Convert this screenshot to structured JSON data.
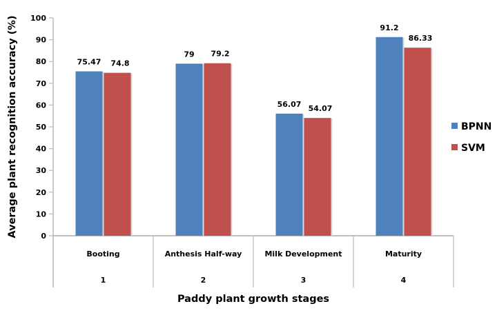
{
  "chart_data": {
    "type": "bar",
    "title": "",
    "xlabel": "Paddy plant growth stages",
    "ylabel": "Average plant recognition accuracy (%)",
    "categories": [
      "Booting",
      "Anthesis Half-way",
      "Milk Development",
      "Maturity"
    ],
    "category_numbers": [
      "1",
      "2",
      "3",
      "4"
    ],
    "ylim": [
      0,
      100
    ],
    "yticks": [
      0,
      10,
      20,
      30,
      40,
      50,
      60,
      70,
      80,
      90,
      100
    ],
    "grid": false,
    "legend_position": "right",
    "series": [
      {
        "name": "BPNN",
        "color": "#4F81BD",
        "values": [
          75.47,
          79,
          56.07,
          91.2
        ],
        "labels": [
          "75.47",
          "79",
          "56.07",
          "91.2"
        ]
      },
      {
        "name": "SVM",
        "color": "#C0504D",
        "values": [
          74.8,
          79.2,
          54.07,
          86.33
        ],
        "labels": [
          "74.8",
          "79.2",
          "54.07",
          "86.33"
        ]
      }
    ]
  }
}
